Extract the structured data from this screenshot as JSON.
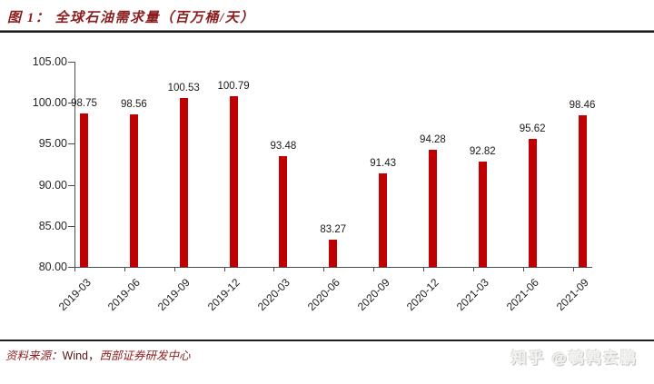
{
  "figure": {
    "title": "图 1：  全球石油需求量（百万桶/天）",
    "source_label": "资料来源：",
    "source_text_latin": "Wind，",
    "source_text_cn": "西部证券研发中心",
    "watermark": "知乎 @鹌鹑去鹏"
  },
  "colors": {
    "bar": "#C00000",
    "title_red": "#8B1E1E",
    "axis": "#4d4d4d",
    "value_label": "#1a1a1a"
  },
  "chart_data": {
    "type": "bar",
    "title": "全球石油需求量（百万桶/天）",
    "xlabel": "",
    "ylabel": "",
    "categories": [
      "2019-03",
      "2019-06",
      "2019-09",
      "2019-12",
      "2020-03",
      "2020-06",
      "2020-09",
      "2020-12",
      "2021-03",
      "2021-06",
      "2021-09"
    ],
    "values": [
      98.75,
      98.56,
      100.53,
      100.79,
      93.48,
      83.27,
      91.43,
      94.28,
      92.82,
      95.62,
      98.46
    ],
    "data_labels": [
      "98.75",
      "98.56",
      "100.53",
      "100.79",
      "93.48",
      "83.27",
      "91.43",
      "94.28",
      "92.82",
      "95.62",
      "98.46"
    ],
    "ylim": [
      80,
      105
    ],
    "yticks": [
      105,
      100,
      95,
      90,
      85,
      80
    ],
    "ytick_labels": [
      "105.00",
      "100.00",
      "95.00",
      "90.00",
      "85.00",
      "80.00"
    ],
    "grid": false,
    "legend": null,
    "bar_color": "#C00000"
  }
}
